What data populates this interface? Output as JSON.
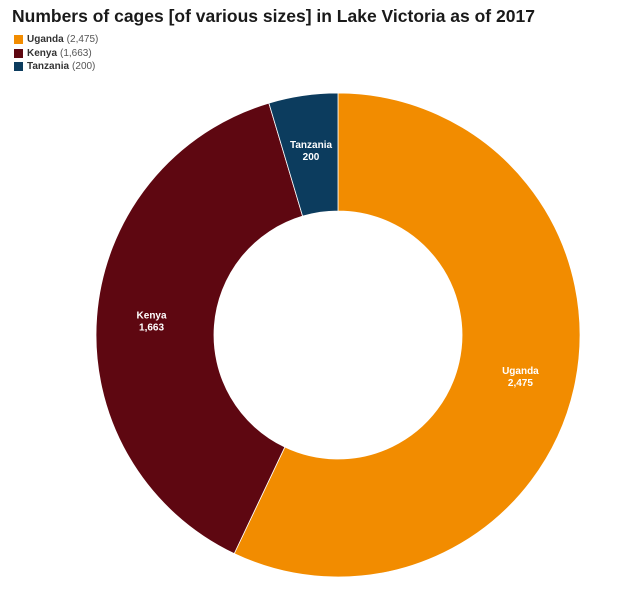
{
  "chart_data": {
    "type": "pie",
    "variant": "donut",
    "title": "Numbers of cages [of various sizes] in Lake Victoria as of 2017",
    "legend_position": "top-left",
    "slices": [
      {
        "name": "Uganda",
        "value": 2475,
        "value_label": "2,475",
        "legend_value": "(2,475)",
        "color": "#f28c00"
      },
      {
        "name": "Kenya",
        "value": 1663,
        "value_label": "1,663",
        "legend_value": "(1,663)",
        "color": "#5e0711"
      },
      {
        "name": "Tanzania",
        "value": 200,
        "value_label": "200",
        "legend_value": "(200)",
        "color": "#0c3c5e"
      }
    ]
  }
}
